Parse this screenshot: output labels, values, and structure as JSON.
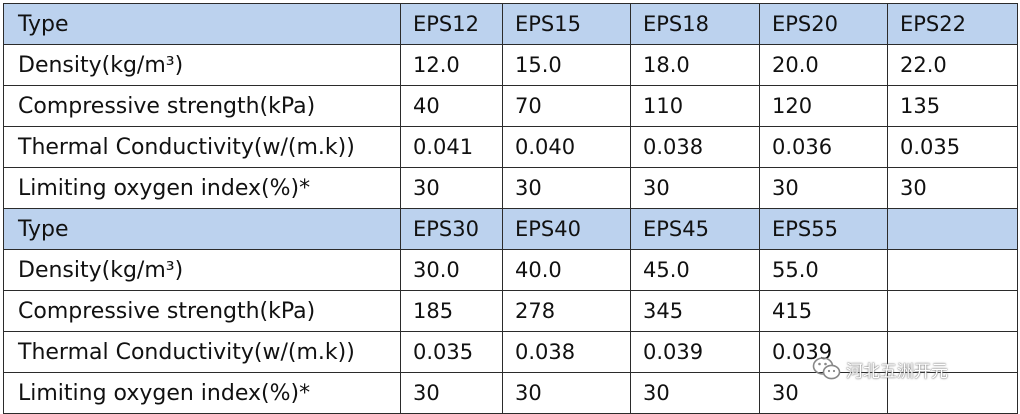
{
  "tables": [
    {
      "header": [
        "Type",
        "EPS12",
        "EPS15",
        "EPS18",
        "EPS20",
        "EPS22"
      ],
      "rows": [
        [
          "Density(kg/m³)",
          "12.0",
          "15.0",
          "18.0",
          "20.0",
          "22.0"
        ],
        [
          "Compressive strength(kPa)",
          "40",
          "70",
          "110",
          "120",
          "135"
        ],
        [
          "Thermal Conductivity(w/(m.k))",
          "0.041",
          "0.040",
          "0.038",
          "0.036",
          "0.035"
        ],
        [
          "Limiting oxygen index(%)*",
          "30",
          "30",
          "30",
          "30",
          "30"
        ]
      ]
    },
    {
      "header": [
        "Type",
        "EPS30",
        "EPS40",
        "EPS45",
        "EPS55",
        ""
      ],
      "rows": [
        [
          "Density(kg/m³)",
          "30.0",
          "40.0",
          "45.0",
          "55.0",
          ""
        ],
        [
          "Compressive strength(kPa)",
          "185",
          "278",
          "345",
          "415",
          ""
        ],
        [
          "Thermal Conductivity(w/(m.k))",
          "0.035",
          "0.038",
          "0.039",
          "0.039",
          ""
        ],
        [
          "Limiting oxygen index(%)*",
          "30",
          "30",
          "30",
          "30",
          ""
        ]
      ]
    }
  ],
  "watermark": {
    "text": "河北五洲开元",
    "icon": "wechat-logo-icon"
  },
  "colors": {
    "header_bg": "#bcd2ee",
    "border": "#2b2b2b",
    "text": "#111111"
  }
}
